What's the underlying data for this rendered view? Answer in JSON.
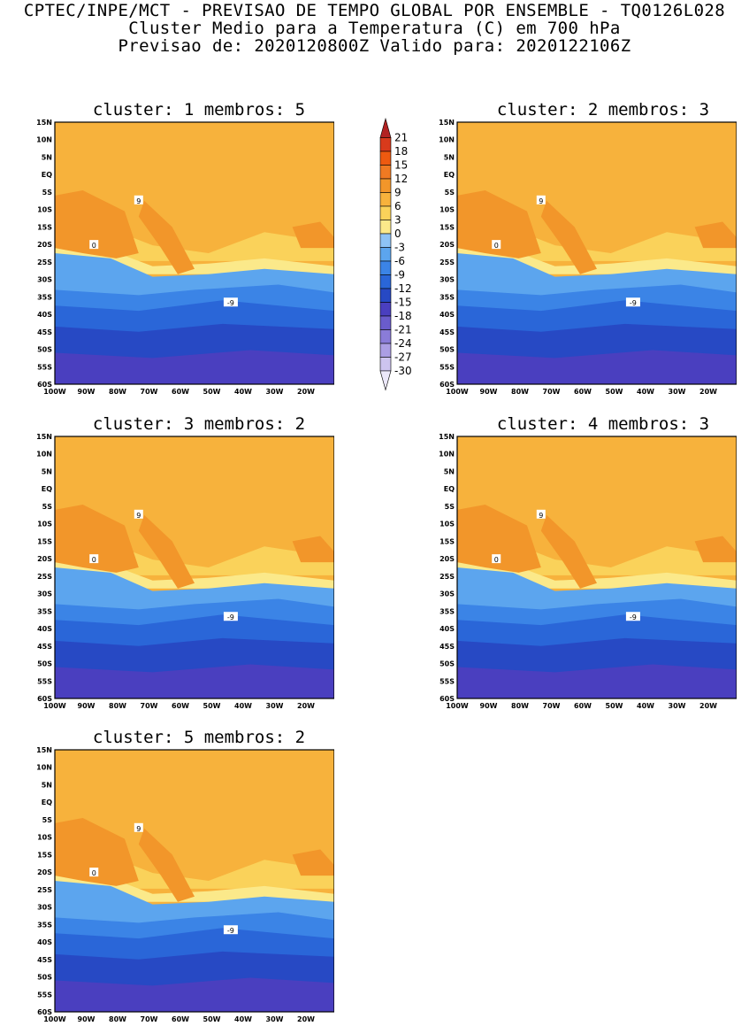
{
  "header": {
    "line1": "CPTEC/INPE/MCT - PREVISAO DE TEMPO GLOBAL POR ENSEMBLE - TQ0126L028",
    "line2": "Cluster Medio para a Temperatura (C) em 700 hPa",
    "line3": "Previsao de: 2020120800Z   Valido para: 2020122106Z"
  },
  "panels": [
    {
      "title": "cluster: 1  membros: 5"
    },
    {
      "title": "cluster: 2  membros: 3"
    },
    {
      "title": "cluster: 3  membros: 2"
    },
    {
      "title": "cluster: 4  membros: 3"
    },
    {
      "title": "cluster: 5  membros: 2"
    }
  ],
  "axes": {
    "lat_labels": [
      "15N",
      "10N",
      "5N",
      "EQ",
      "5S",
      "10S",
      "15S",
      "20S",
      "25S",
      "30S",
      "35S",
      "40S",
      "45S",
      "50S",
      "55S",
      "60S"
    ],
    "lon_labels": [
      "100W",
      "90W",
      "80W",
      "70W",
      "60W",
      "50W",
      "40W",
      "30W",
      "20W"
    ]
  },
  "colorbar": {
    "levels": [
      "21",
      "18",
      "15",
      "12",
      "9",
      "6",
      "3",
      "0",
      "-3",
      "-6",
      "-9",
      "-12",
      "-15",
      "-18",
      "-21",
      "-24",
      "-27",
      "-30"
    ],
    "colors": [
      "#b22222",
      "#d83a1c",
      "#ee5a10",
      "#f07a22",
      "#f2962a",
      "#f7b23c",
      "#fad25a",
      "#fbe98a",
      "#8ec3f5",
      "#5ca5ee",
      "#3b84e6",
      "#2a66d8",
      "#2749c4",
      "#4a3fbf",
      "#6a5ccc",
      "#8a7cd8",
      "#ab9ee4",
      "#cdc4ef",
      "#ece8fa"
    ]
  },
  "contour_labels": {
    "nine": "9",
    "zero": "0",
    "minus_nine": "-9"
  }
}
